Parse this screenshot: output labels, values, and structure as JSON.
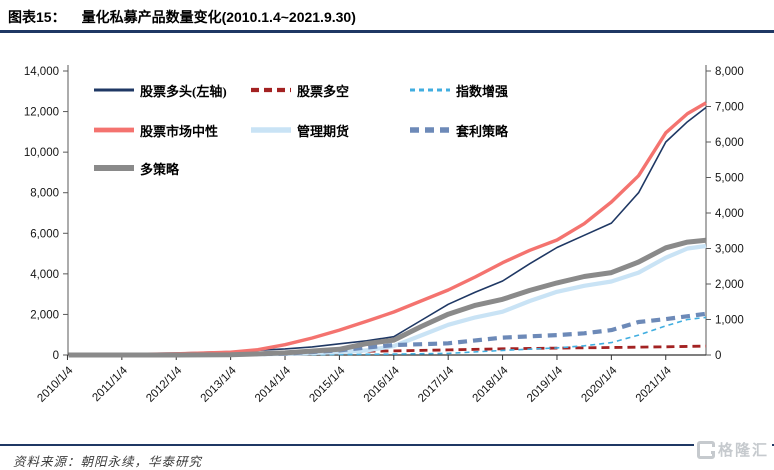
{
  "header": {
    "label": "图表15：",
    "title": "量化私募产品数量变化(2010.1.4~2021.9.30)"
  },
  "footer": {
    "source_label": "资料来源：",
    "source_text": "朝阳永续，华泰研究"
  },
  "brand": {
    "icon": "g-square-icon",
    "text": "格隆汇"
  },
  "colors": {
    "rule": "#1f3864",
    "axis": "#595959",
    "x_axis_line": "#333333",
    "tick_text": "#141414"
  },
  "chart_data": {
    "type": "line",
    "title": "量化私募产品数量变化(2010.1.4~2021.9.30)",
    "grid": false,
    "legend_position": "top-left-inside",
    "left_axis": {
      "min": 0,
      "max": 14000,
      "tick_values": [
        0,
        2000,
        4000,
        6000,
        8000,
        10000,
        12000,
        14000
      ],
      "tick_labels": [
        "0",
        "2,000",
        "4,000",
        "6,000",
        "8,000",
        "10,000",
        "12,000",
        "14,000"
      ]
    },
    "right_axis": {
      "min": 0,
      "max": 8000,
      "tick_values": [
        0,
        1000,
        2000,
        3000,
        4000,
        5000,
        6000,
        7000,
        8000
      ],
      "tick_labels": [
        "0",
        "1,000",
        "2,000",
        "3,000",
        "4,000",
        "5,000",
        "6,000",
        "7,000",
        "8,000"
      ]
    },
    "x_axis": {
      "start": 2010.01,
      "end": 2021.74,
      "tick_years": [
        2010,
        2011,
        2012,
        2013,
        2014,
        2015,
        2016,
        2017,
        2018,
        2019,
        2020,
        2021
      ],
      "tick_labels": [
        "2010/1/4",
        "2011/1/4",
        "2012/1/4",
        "2013/1/4",
        "2014/1/4",
        "2015/1/4",
        "2016/1/4",
        "2017/1/4",
        "2018/1/4",
        "2019/1/4",
        "2020/1/4",
        "2021/1/4"
      ]
    },
    "series": [
      {
        "name": "股票多头(左轴)",
        "axis": "left",
        "color": "#1f3864",
        "width": 1.6,
        "dash": null,
        "legend": {
          "row": 0,
          "col": 0
        },
        "points": [
          [
            2010.02,
            30
          ],
          [
            2011,
            60
          ],
          [
            2012,
            100
          ],
          [
            2013,
            170
          ],
          [
            2014,
            300
          ],
          [
            2014.5,
            400
          ],
          [
            2015,
            550
          ],
          [
            2015.5,
            700
          ],
          [
            2016,
            900
          ],
          [
            2016.5,
            1700
          ],
          [
            2017,
            2500
          ],
          [
            2017.5,
            3100
          ],
          [
            2018,
            3650
          ],
          [
            2018.5,
            4500
          ],
          [
            2019,
            5300
          ],
          [
            2019.5,
            5900
          ],
          [
            2020,
            6500
          ],
          [
            2020.5,
            8000
          ],
          [
            2021,
            10500
          ],
          [
            2021.4,
            11500
          ],
          [
            2021.74,
            12200
          ]
        ]
      },
      {
        "name": "股票多空",
        "axis": "right",
        "color": "#a32222",
        "width": 2.8,
        "dash": "8 5",
        "legend": {
          "row": 0,
          "col": 1
        },
        "points": [
          [
            2010.02,
            0
          ],
          [
            2011,
            8
          ],
          [
            2012,
            20
          ],
          [
            2013,
            45
          ],
          [
            2014,
            75
          ],
          [
            2015,
            95
          ],
          [
            2016,
            115
          ],
          [
            2017,
            145
          ],
          [
            2018,
            175
          ],
          [
            2019,
            195
          ],
          [
            2020,
            210
          ],
          [
            2021,
            230
          ],
          [
            2021.74,
            250
          ]
        ]
      },
      {
        "name": "指数增强",
        "axis": "right",
        "color": "#41aee0",
        "width": 1.6,
        "dash": "5 4",
        "legend": {
          "row": 0,
          "col": 2
        },
        "points": [
          [
            2010.02,
            0
          ],
          [
            2011,
            0
          ],
          [
            2012,
            0
          ],
          [
            2013,
            5
          ],
          [
            2014,
            10
          ],
          [
            2015,
            15
          ],
          [
            2016,
            25
          ],
          [
            2017,
            45
          ],
          [
            2018,
            130
          ],
          [
            2019,
            200
          ],
          [
            2019.5,
            260
          ],
          [
            2020,
            350
          ],
          [
            2020.5,
            560
          ],
          [
            2021,
            820
          ],
          [
            2021.4,
            1000
          ],
          [
            2021.74,
            1060
          ]
        ]
      },
      {
        "name": "股票市场中性",
        "axis": "right",
        "color": "#f4736f",
        "width": 3.4,
        "dash": null,
        "legend": {
          "row": 1,
          "col": 0
        },
        "points": [
          [
            2010.02,
            5
          ],
          [
            2011,
            15
          ],
          [
            2012,
            35
          ],
          [
            2013,
            80
          ],
          [
            2013.5,
            150
          ],
          [
            2014,
            290
          ],
          [
            2014.5,
            480
          ],
          [
            2015,
            700
          ],
          [
            2015.5,
            950
          ],
          [
            2016,
            1210
          ],
          [
            2016.5,
            1520
          ],
          [
            2017,
            1830
          ],
          [
            2017.5,
            2200
          ],
          [
            2018,
            2600
          ],
          [
            2018.5,
            2950
          ],
          [
            2019,
            3240
          ],
          [
            2019.5,
            3700
          ],
          [
            2020,
            4310
          ],
          [
            2020.5,
            5050
          ],
          [
            2021,
            6260
          ],
          [
            2021.4,
            6800
          ],
          [
            2021.74,
            7100
          ]
        ]
      },
      {
        "name": "管理期货",
        "axis": "right",
        "color": "#c9e3f5",
        "width": 4.2,
        "dash": null,
        "legend": {
          "row": 1,
          "col": 1
        },
        "points": [
          [
            2010.02,
            0
          ],
          [
            2011,
            0
          ],
          [
            2012,
            0
          ],
          [
            2013,
            10
          ],
          [
            2014,
            30
          ],
          [
            2015,
            80
          ],
          [
            2015.5,
            130
          ],
          [
            2016,
            250
          ],
          [
            2016.5,
            550
          ],
          [
            2017,
            850
          ],
          [
            2017.5,
            1060
          ],
          [
            2018,
            1220
          ],
          [
            2018.5,
            1520
          ],
          [
            2019,
            1780
          ],
          [
            2019.5,
            1950
          ],
          [
            2020,
            2070
          ],
          [
            2020.5,
            2320
          ],
          [
            2021,
            2740
          ],
          [
            2021.4,
            3000
          ],
          [
            2021.74,
            3070
          ]
        ]
      },
      {
        "name": "套利策略",
        "axis": "right",
        "color": "#6d8ab8",
        "width": 4.2,
        "dash": "9 6",
        "legend": {
          "row": 1,
          "col": 2
        },
        "points": [
          [
            2010.02,
            0
          ],
          [
            2011,
            0
          ],
          [
            2012,
            0
          ],
          [
            2013,
            10
          ],
          [
            2014,
            40
          ],
          [
            2015,
            130
          ],
          [
            2015.5,
            210
          ],
          [
            2016,
            280
          ],
          [
            2017,
            330
          ],
          [
            2018,
            490
          ],
          [
            2019,
            560
          ],
          [
            2019.5,
            610
          ],
          [
            2020,
            700
          ],
          [
            2020.5,
            930
          ],
          [
            2021,
            1010
          ],
          [
            2021.74,
            1160
          ]
        ]
      },
      {
        "name": "多策略",
        "axis": "right",
        "color": "#8a8a8a",
        "width": 5,
        "dash": null,
        "legend": {
          "row": 2,
          "col": 0
        },
        "points": [
          [
            2010.02,
            0
          ],
          [
            2011,
            0
          ],
          [
            2012,
            0
          ],
          [
            2013,
            5
          ],
          [
            2014,
            60
          ],
          [
            2015,
            160
          ],
          [
            2015.5,
            320
          ],
          [
            2016,
            420
          ],
          [
            2016.5,
            800
          ],
          [
            2017,
            1150
          ],
          [
            2017.5,
            1400
          ],
          [
            2018,
            1570
          ],
          [
            2018.5,
            1820
          ],
          [
            2019,
            2030
          ],
          [
            2019.5,
            2210
          ],
          [
            2020,
            2320
          ],
          [
            2020.5,
            2620
          ],
          [
            2021,
            3020
          ],
          [
            2021.4,
            3180
          ],
          [
            2021.74,
            3230
          ]
        ]
      }
    ]
  }
}
